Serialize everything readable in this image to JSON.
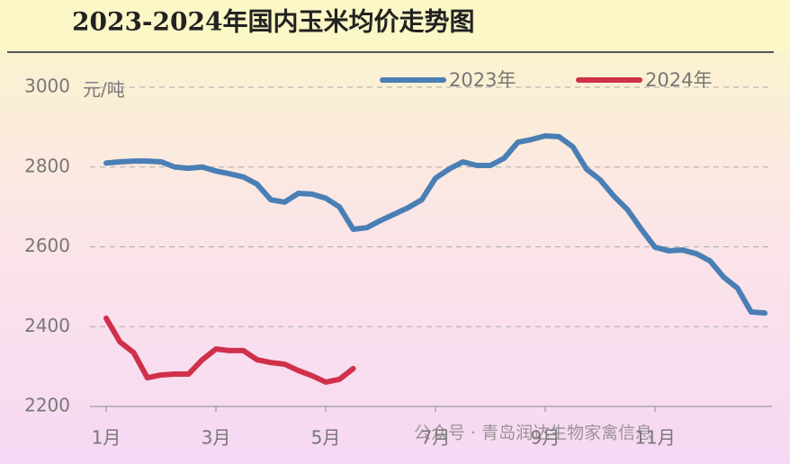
{
  "chart_data": {
    "type": "line",
    "title": "2023-2024年国内玉米均价走势图",
    "y_label": "元/吨",
    "watermark": "公众号 · 青岛润达生物家禽信息",
    "categories": [
      "1月",
      null,
      null,
      null,
      null,
      null,
      null,
      null,
      "3月",
      null,
      null,
      null,
      null,
      null,
      null,
      null,
      "5月",
      null,
      null,
      null,
      null,
      null,
      null,
      null,
      "7月",
      null,
      null,
      null,
      null,
      null,
      null,
      null,
      "9月",
      null,
      null,
      null,
      null,
      null,
      null,
      null,
      "11月",
      null,
      null,
      null,
      null,
      null,
      null,
      null,
      null
    ],
    "series": [
      {
        "name": "2023年",
        "color": "#4a7fb5",
        "values": [
          2810,
          2813,
          2815,
          2815,
          2813,
          2800,
          2797,
          2800,
          2790,
          2783,
          2775,
          2757,
          2718,
          2712,
          2734,
          2732,
          2722,
          2700,
          2644,
          2648,
          2666,
          2682,
          2698,
          2718,
          2772,
          2795,
          2813,
          2804,
          2804,
          2822,
          2862,
          2869,
          2878,
          2876,
          2851,
          2795,
          2768,
          2727,
          2693,
          2644,
          2599,
          2590,
          2592,
          2583,
          2565,
          2524,
          2497,
          2437,
          2434
        ]
      },
      {
        "name": "2024年",
        "color": "#d0304a",
        "values": [
          2421,
          2362,
          2335,
          2272,
          2279,
          2281,
          2281,
          2317,
          2344,
          2340,
          2340,
          2317,
          2310,
          2306,
          2290,
          2277,
          2261,
          2268,
          2295,
          null,
          null,
          null,
          null,
          null,
          null,
          null,
          null,
          null,
          null,
          null,
          null,
          null,
          null,
          null,
          null,
          null,
          null,
          null,
          null,
          null,
          null,
          null,
          null,
          null,
          null,
          null,
          null,
          null,
          null
        ]
      }
    ],
    "ylim": [
      2200,
      3000
    ],
    "yticks": [
      2200,
      2400,
      2600,
      2800,
      3000
    ],
    "grid": true,
    "legend": "top-right"
  }
}
